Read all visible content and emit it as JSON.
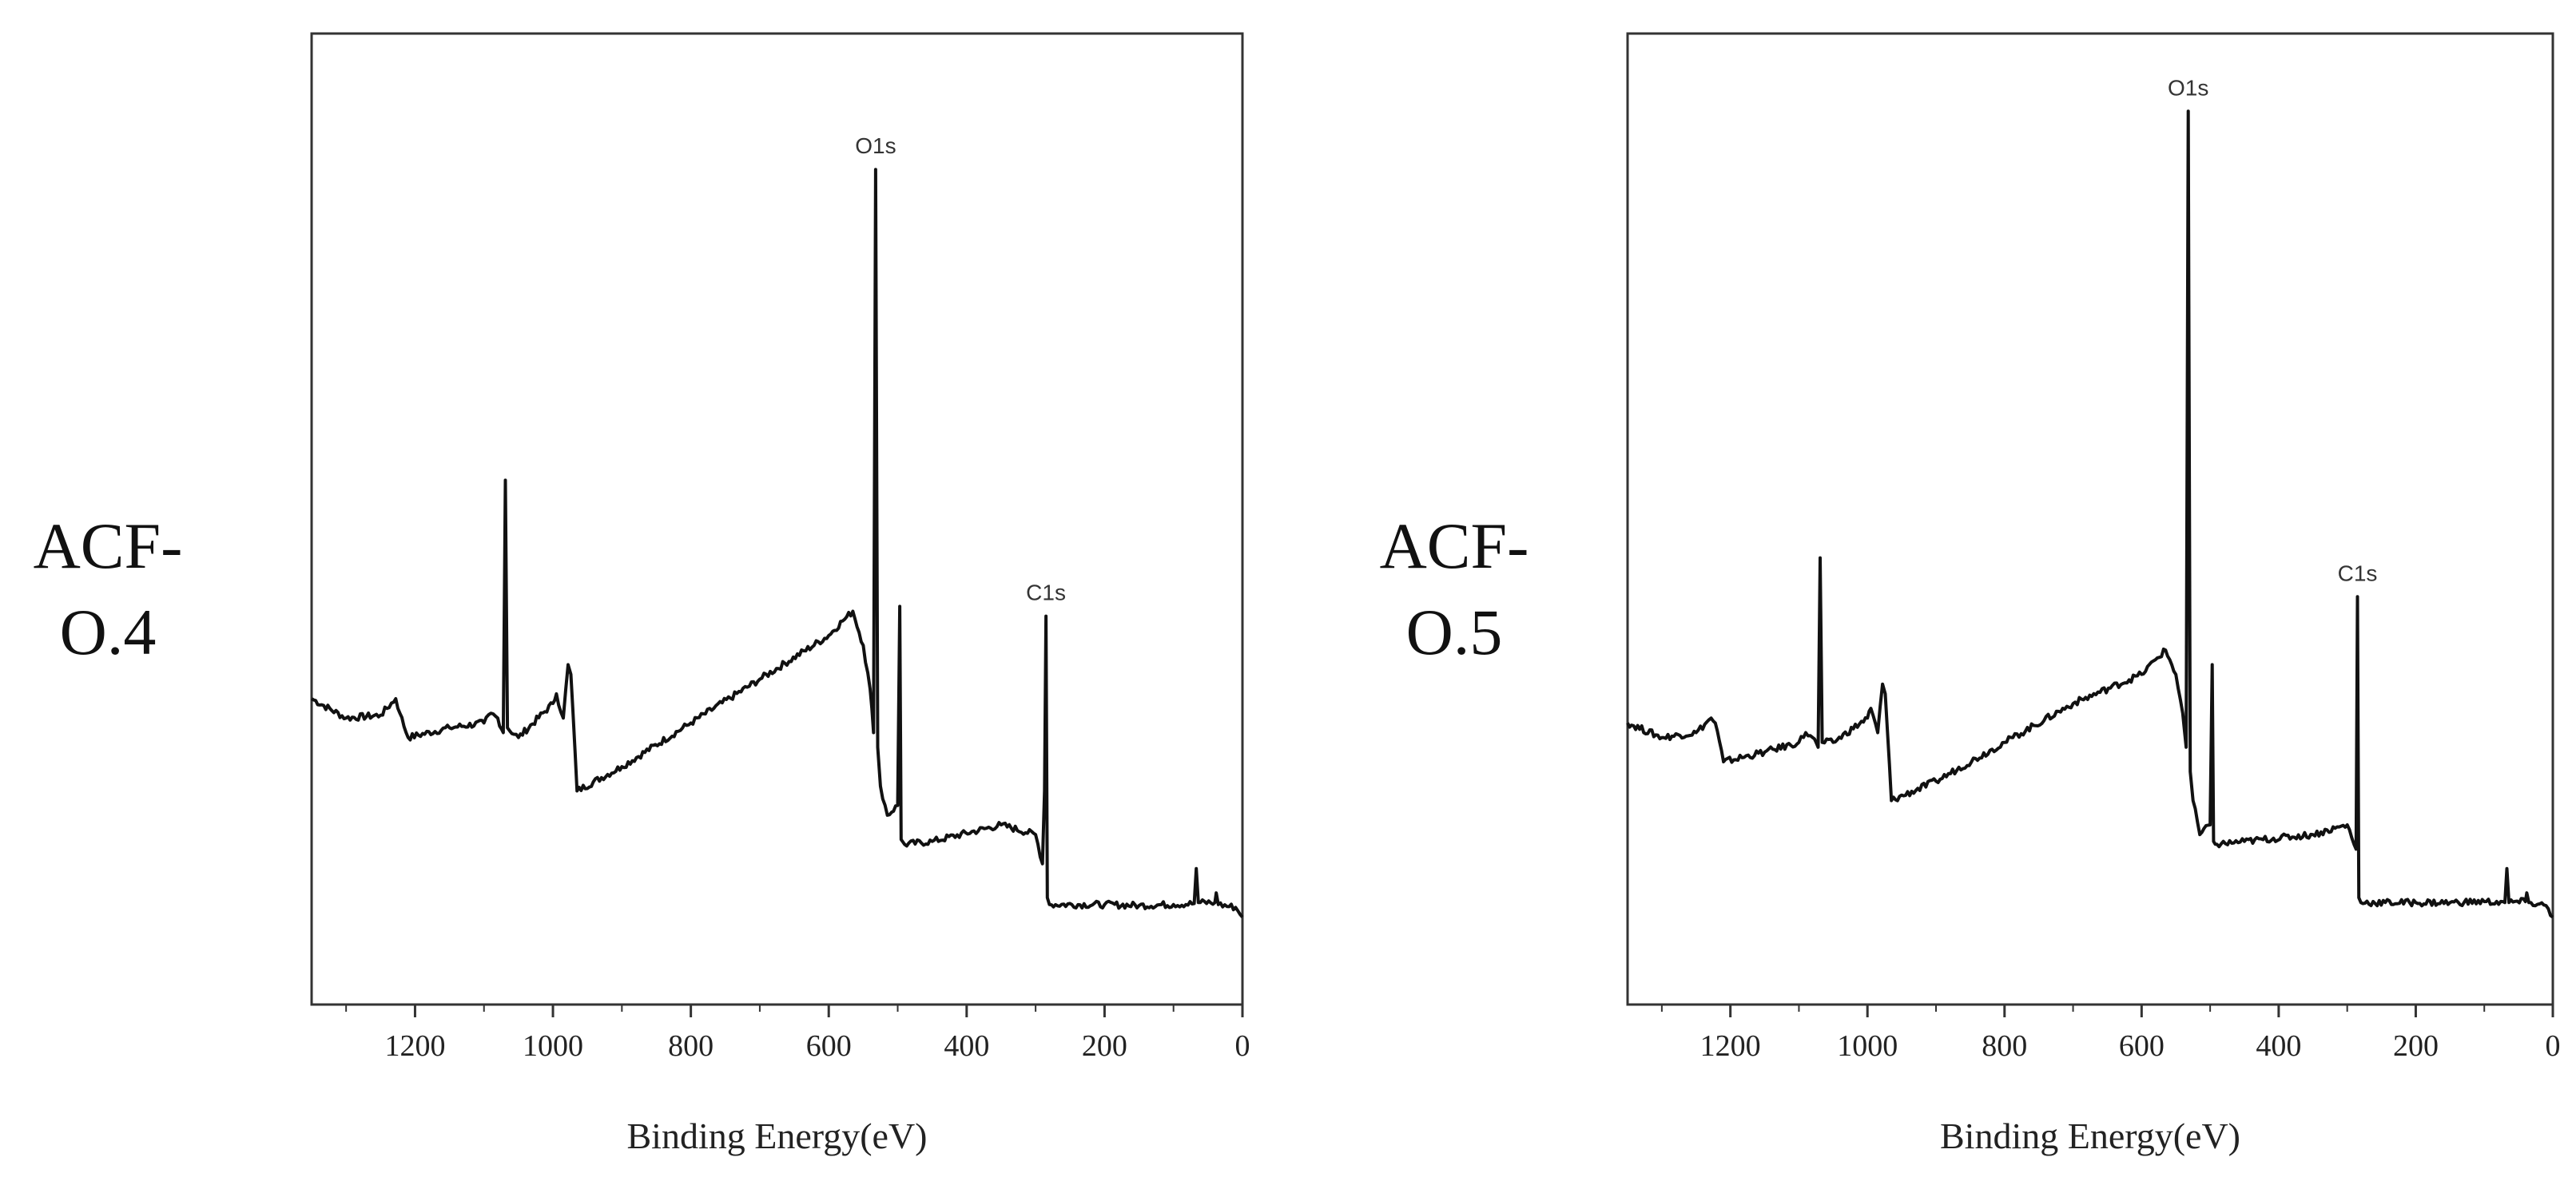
{
  "chart_data": [
    {
      "type": "line",
      "sample_label_line1": "ACF-",
      "sample_label_line2": "O.4",
      "xlabel": "Binding Energy(eV)",
      "ylabel": "",
      "xlim": [
        1350,
        0
      ],
      "ylim": [
        0,
        100
      ],
      "xticks": [
        1200,
        1000,
        800,
        600,
        400,
        200,
        0
      ],
      "y_ticks_shown": false,
      "annotations": [
        {
          "text": "O1s",
          "x": 532
        },
        {
          "text": "C1s",
          "x": 285
        }
      ],
      "series": [
        {
          "name": "ACF-O.4",
          "x": [
            1350,
            1300,
            1250,
            1228,
            1222,
            1210,
            1150,
            1100,
            1090,
            1080,
            1072,
            1069,
            1066,
            1050,
            1000,
            995,
            985,
            978,
            974,
            965,
            900,
            800,
            700,
            600,
            580,
            565,
            550,
            540,
            535,
            532,
            529,
            525,
            515,
            500,
            497,
            495,
            490,
            450,
            350,
            300,
            290,
            287,
            285,
            283,
            280,
            200,
            150,
            100,
            70,
            67,
            64,
            40,
            38,
            35,
            10,
            0
          ],
          "y": [
            31.5,
            29.5,
            29.8,
            31.5,
            30,
            27.5,
            28.5,
            29,
            30,
            29.5,
            28,
            54,
            28.5,
            27.5,
            31,
            32,
            29.5,
            35,
            34,
            22,
            24.5,
            29,
            33.5,
            38,
            39.5,
            40.5,
            37,
            32.5,
            28,
            86,
            26.5,
            22.5,
            19.5,
            20.5,
            41,
            17,
            16.5,
            16.8,
            18.5,
            17.5,
            14.5,
            22,
            40,
            11,
            10.3,
            10.3,
            10.2,
            10.3,
            10.4,
            14,
            10.5,
            10.5,
            11.5,
            10.3,
            10,
            9
          ]
        }
      ]
    },
    {
      "type": "line",
      "sample_label_line1": "ACF-",
      "sample_label_line2": "O.5",
      "xlabel": "Binding Energy(eV)",
      "ylabel": "",
      "xlim": [
        1350,
        0
      ],
      "ylim": [
        0,
        100
      ],
      "xticks": [
        1200,
        1000,
        800,
        600,
        400,
        200,
        0
      ],
      "y_ticks_shown": false,
      "annotations": [
        {
          "text": "O1s",
          "x": 532
        },
        {
          "text": "C1s",
          "x": 285
        }
      ],
      "series": [
        {
          "name": "ACF-O.5",
          "x": [
            1350,
            1300,
            1250,
            1228,
            1222,
            1210,
            1150,
            1100,
            1090,
            1080,
            1072,
            1069,
            1066,
            1050,
            1000,
            995,
            985,
            978,
            974,
            965,
            900,
            800,
            700,
            600,
            580,
            565,
            550,
            540,
            535,
            532,
            529,
            525,
            515,
            500,
            497,
            495,
            490,
            450,
            350,
            300,
            290,
            287,
            285,
            283,
            280,
            200,
            150,
            100,
            70,
            67,
            64,
            40,
            38,
            35,
            10,
            0
          ],
          "y": [
            29,
            27.5,
            28,
            29.5,
            29,
            25,
            26,
            27,
            28,
            27.5,
            26.5,
            46,
            27,
            27,
            29.5,
            30.5,
            28,
            33,
            32,
            21,
            23,
            27,
            31,
            34,
            35.5,
            36.5,
            34,
            30,
            26.5,
            92,
            24,
            21,
            17.5,
            18.5,
            35,
            16.8,
            16.5,
            16.8,
            17.5,
            18.5,
            16.5,
            16,
            42,
            11,
            10.5,
            10.5,
            10.5,
            10.6,
            10.5,
            14,
            10.5,
            10.6,
            11.5,
            10.5,
            10.2,
            9
          ]
        }
      ]
    }
  ]
}
